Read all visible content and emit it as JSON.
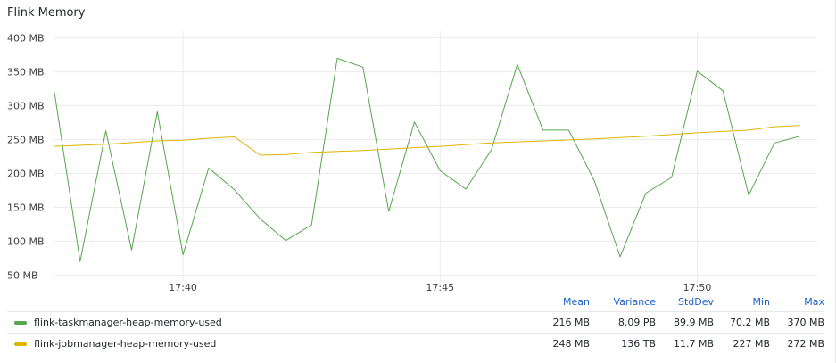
{
  "panel": {
    "title": "Flink Memory"
  },
  "colors": {
    "taskmanager": "#56a64b",
    "jobmanager": "#e0b400",
    "grid": "#ececec"
  },
  "legend": {
    "headers": {
      "mean": "Mean",
      "variance": "Variance",
      "stddev": "StdDev",
      "min": "Min",
      "max": "Max"
    },
    "rows": [
      {
        "name": "flink-taskmanager-heap-memory-used",
        "mean": "216 MB",
        "variance": "8.09 PB",
        "stddev": "89.9 MB",
        "min": "70.2 MB",
        "max": "370 MB"
      },
      {
        "name": "flink-jobmanager-heap-memory-used",
        "mean": "248 MB",
        "variance": "136 TB",
        "stddev": "11.7 MB",
        "min": "227 MB",
        "max": "272 MB"
      }
    ]
  },
  "chart_data": {
    "type": "line",
    "xlabel": "",
    "ylabel": "",
    "y_unit": "MB",
    "ylim": [
      40,
      410
    ],
    "xlim": [
      "17:37:30",
      "17:52:20"
    ],
    "y_ticks": [
      50,
      100,
      150,
      200,
      250,
      300,
      350,
      400
    ],
    "y_tick_labels": [
      "50 MB",
      "100 MB",
      "150 MB",
      "200 MB",
      "250 MB",
      "300 MB",
      "350 MB",
      "400 MB"
    ],
    "x_ticks": [
      "17:40:00",
      "17:45:00",
      "17:50:00"
    ],
    "x_tick_labels": [
      "17:40",
      "17:45",
      "17:50"
    ],
    "grid": true,
    "legend_position": "bottom",
    "series": [
      {
        "name": "flink-taskmanager-heap-memory-used",
        "color": "#56a64b",
        "points": [
          [
            "17:37:30",
            320
          ],
          [
            "17:38:00",
            70
          ],
          [
            "17:38:30",
            263
          ],
          [
            "17:39:00",
            87
          ],
          [
            "17:39:30",
            291
          ],
          [
            "17:40:00",
            80
          ],
          [
            "17:40:30",
            208
          ],
          [
            "17:41:00",
            176
          ],
          [
            "17:41:30",
            133
          ],
          [
            "17:42:00",
            101
          ],
          [
            "17:42:30",
            124
          ],
          [
            "17:43:00",
            370
          ],
          [
            "17:43:30",
            357
          ],
          [
            "17:44:00",
            144
          ],
          [
            "17:44:30",
            276
          ],
          [
            "17:45:00",
            204
          ],
          [
            "17:45:30",
            177
          ],
          [
            "17:46:00",
            235
          ],
          [
            "17:46:30",
            361
          ],
          [
            "17:47:00",
            264
          ],
          [
            "17:47:30",
            264
          ],
          [
            "17:48:00",
            189
          ],
          [
            "17:48:30",
            77
          ],
          [
            "17:49:00",
            171
          ],
          [
            "17:49:30",
            194
          ],
          [
            "17:50:00",
            351
          ],
          [
            "17:50:30",
            322
          ],
          [
            "17:51:00",
            168
          ],
          [
            "17:51:30",
            245
          ],
          [
            "17:52:00",
            255
          ]
        ]
      },
      {
        "name": "flink-jobmanager-heap-memory-used",
        "color": "#e0b400",
        "points": [
          [
            "17:37:30",
            240
          ],
          [
            "17:38:30",
            243
          ],
          [
            "17:39:30",
            248
          ],
          [
            "17:40:00",
            249
          ],
          [
            "17:40:30",
            252
          ],
          [
            "17:41:00",
            254
          ],
          [
            "17:41:30",
            227
          ],
          [
            "17:42:00",
            228
          ],
          [
            "17:42:30",
            231
          ],
          [
            "17:43:30",
            234
          ],
          [
            "17:44:00",
            236
          ],
          [
            "17:45:00",
            240
          ],
          [
            "17:46:00",
            245
          ],
          [
            "17:47:00",
            248
          ],
          [
            "17:48:00",
            251
          ],
          [
            "17:49:00",
            255
          ],
          [
            "17:50:00",
            260
          ],
          [
            "17:51:00",
            264
          ],
          [
            "17:51:30",
            269
          ],
          [
            "17:52:00",
            271
          ]
        ]
      }
    ]
  }
}
